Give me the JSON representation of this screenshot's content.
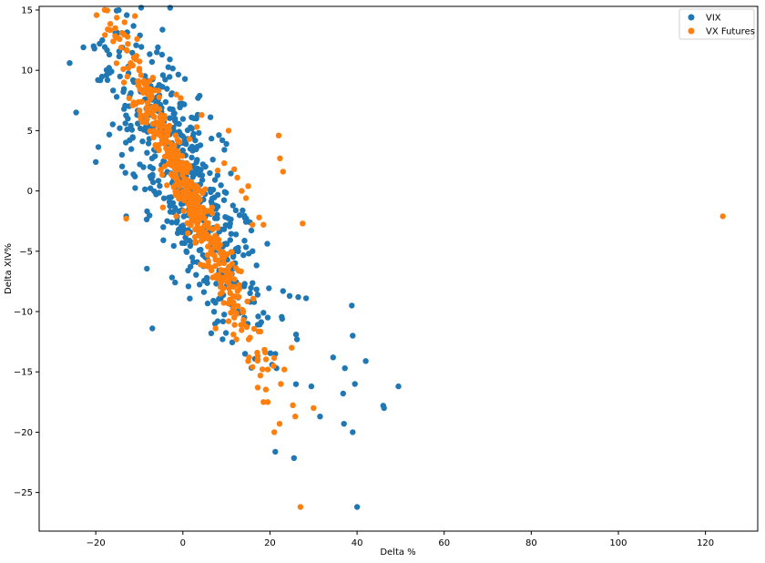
{
  "chart_data": {
    "type": "scatter",
    "xlabel": "Delta %",
    "ylabel": "Delta XIV%",
    "xlim": [
      -33,
      132
    ],
    "ylim": [
      -28.2,
      15.3
    ],
    "xticks": [
      -20,
      0,
      20,
      40,
      60,
      80,
      100,
      120
    ],
    "yticks": [
      -25,
      -20,
      -15,
      -10,
      -5,
      0,
      5,
      10,
      15
    ],
    "grid": false,
    "legend_position": "top-right",
    "series": [
      {
        "name": "VIX",
        "color": "#1f77b4",
        "points": [
          [
            -26,
            10.6
          ],
          [
            -24.5,
            6.5
          ],
          [
            -20.5,
            12
          ],
          [
            -20.3,
            11.8
          ],
          [
            -20,
            2.4
          ],
          [
            -19.5,
            9.2
          ],
          [
            -18.5,
            12.5
          ],
          [
            -17.5,
            9.6
          ],
          [
            -16.8,
            9.8
          ],
          [
            -16.4,
            9.9
          ],
          [
            -15.5,
            13.1
          ],
          [
            -15.2,
            7.8
          ],
          [
            -15,
            13.1
          ],
          [
            -14.5,
            5.2
          ],
          [
            -14,
            3
          ],
          [
            -13.5,
            6.8
          ],
          [
            -13.2,
            1.5
          ],
          [
            -13,
            -2.1
          ],
          [
            -12.8,
            5.1
          ],
          [
            -12.2,
            7.9
          ],
          [
            -11.5,
            4.4
          ],
          [
            -11,
            1.2
          ],
          [
            -10.5,
            6.3
          ],
          [
            -7,
            -11.4
          ],
          [
            -4.5,
            -3
          ],
          [
            -3.6,
            -2.5
          ],
          [
            -2.4,
            3.3
          ],
          [
            -1.8,
            -1.4
          ],
          [
            -1.2,
            -3.5
          ],
          [
            0.8,
            -5
          ],
          [
            1.2,
            -6.6
          ],
          [
            2.3,
            4.5
          ],
          [
            3.1,
            6
          ],
          [
            3.3,
            -5.9
          ],
          [
            3.6,
            -0.6
          ],
          [
            5.5,
            -7.2
          ],
          [
            6.5,
            -11.8
          ],
          [
            7,
            -9.1
          ],
          [
            8,
            -10.8
          ],
          [
            8.7,
            -8.9
          ],
          [
            10,
            3.9
          ],
          [
            10.2,
            -5.7
          ],
          [
            11.3,
            -9.3
          ],
          [
            12.2,
            -3.6
          ],
          [
            13.1,
            -10.1
          ],
          [
            14.2,
            -7.7
          ],
          [
            15.5,
            -9.2
          ],
          [
            17.3,
            -10.4
          ],
          [
            18.5,
            -10.1
          ],
          [
            19.5,
            -10.5
          ],
          [
            20.5,
            -14.4
          ],
          [
            21.5,
            -14.7
          ],
          [
            22.8,
            -10.6
          ],
          [
            23,
            -8.3
          ],
          [
            24.5,
            -8.7
          ],
          [
            26,
            -11.9
          ],
          [
            26.2,
            -12.3
          ],
          [
            26.5,
            -8.8
          ],
          [
            28.3,
            -8.9
          ],
          [
            29.5,
            -16.2
          ],
          [
            31.5,
            -18.7
          ],
          [
            34.5,
            -13.8
          ],
          [
            36.8,
            -16.8
          ],
          [
            37,
            -19.3
          ],
          [
            37.2,
            -14.7
          ],
          [
            38.8,
            -9.5
          ],
          [
            39,
            -12
          ],
          [
            39,
            -20
          ],
          [
            39.5,
            -16
          ],
          [
            40,
            -26.2
          ],
          [
            42,
            -14.1
          ],
          [
            46,
            -17.8
          ],
          [
            46.2,
            -18
          ],
          [
            49.5,
            -16.2
          ]
        ],
        "cluster": {
          "center": [
            1,
            0.5
          ],
          "slope": -0.62,
          "spread_along": 9,
          "spread_across": 1.7,
          "count": 520
        }
      },
      {
        "name": "VX Futures",
        "color": "#ff7f0e",
        "points": [
          [
            -16,
            12.4
          ],
          [
            -14,
            13.1
          ],
          [
            -13,
            -2.3
          ],
          [
            -12.5,
            10.2
          ],
          [
            -12,
            10.6
          ],
          [
            -11.5,
            10.4
          ],
          [
            -11,
            14.5
          ],
          [
            -10.5,
            12.6
          ],
          [
            -10.2,
            9.1
          ],
          [
            -10,
            10
          ],
          [
            -9.8,
            8.4
          ],
          [
            -9.6,
            9.6
          ],
          [
            -1.5,
            8
          ],
          [
            -0.5,
            7.7
          ],
          [
            1.5,
            4.3
          ],
          [
            3.2,
            5.3
          ],
          [
            4.3,
            6.3
          ],
          [
            8,
            1.7
          ],
          [
            9.5,
            2.3
          ],
          [
            10.5,
            5
          ],
          [
            11.8,
            1.8
          ],
          [
            12.5,
            1.1
          ],
          [
            13.5,
            0
          ],
          [
            14.5,
            -0.6
          ],
          [
            15,
            0.4
          ],
          [
            16,
            -2.8
          ],
          [
            17.5,
            -2.2
          ],
          [
            18.5,
            -2.8
          ],
          [
            22,
            4.6
          ],
          [
            22.3,
            2.7
          ],
          [
            23,
            1.6
          ],
          [
            27.5,
            -2.7
          ],
          [
            7.5,
            -11.4
          ],
          [
            10.5,
            -10.8
          ],
          [
            11,
            -10.1
          ],
          [
            11.8,
            -10.5
          ],
          [
            12.3,
            -10.2
          ],
          [
            11.6,
            -11.9
          ],
          [
            12.3,
            -12.3
          ],
          [
            15,
            -14.1
          ],
          [
            15.2,
            -13.8
          ],
          [
            16,
            -14.6
          ],
          [
            17.2,
            -13.7
          ],
          [
            17.8,
            -15.3
          ],
          [
            19.5,
            -14.8
          ],
          [
            20.8,
            -14.5
          ],
          [
            22.5,
            -16
          ],
          [
            23.3,
            -14.8
          ],
          [
            25,
            -13
          ],
          [
            21,
            -20
          ],
          [
            22.2,
            -19.3
          ],
          [
            25.8,
            -18.7
          ],
          [
            30,
            -18
          ],
          [
            18.5,
            -17.5
          ],
          [
            17.2,
            -16.3
          ],
          [
            19.5,
            -17.5
          ],
          [
            27,
            -26.2
          ],
          [
            124,
            -2.1
          ]
        ],
        "cluster": {
          "center": [
            0,
            0.8
          ],
          "slope": -0.78,
          "spread_along": 8,
          "spread_across": 0.65,
          "count": 480
        }
      }
    ]
  }
}
